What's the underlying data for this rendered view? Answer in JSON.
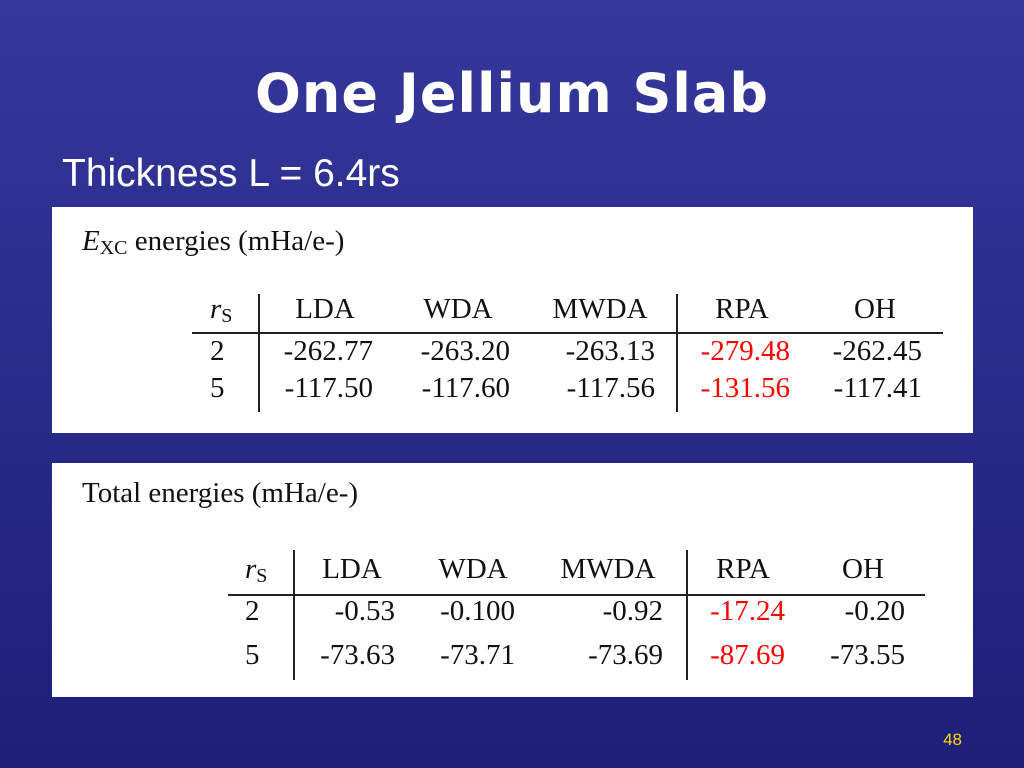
{
  "title": "One Jellium Slab",
  "subtitle": "Thickness L = 6.4rs",
  "tables": [
    {
      "caption_symbol": "E",
      "caption_subscript": "XC",
      "caption_text": "energies (mHa/e-)",
      "header_symbol": "r",
      "header_subscript": "S",
      "columns": [
        "LDA",
        "WDA",
        "MWDA",
        "RPA",
        "OH"
      ],
      "highlight": {
        "column": "RPA",
        "color": "#ff0000"
      },
      "rows": [
        {
          "rs": "2",
          "values": [
            "-262.77",
            "-263.20",
            "-263.13",
            "-279.48",
            "-262.45"
          ]
        },
        {
          "rs": "5",
          "values": [
            "-117.50",
            "-117.60",
            "-117.56",
            "-131.56",
            "-117.41"
          ]
        }
      ]
    },
    {
      "caption_text": "Total energies (mHa/e-)",
      "header_symbol": "r",
      "header_subscript": "S",
      "columns": [
        "LDA",
        "WDA",
        "MWDA",
        "RPA",
        "OH"
      ],
      "highlight": {
        "column": "RPA",
        "color": "#ff0000"
      },
      "rows": [
        {
          "rs": "2",
          "values": [
            "-0.53",
            "-0.100",
            "-0.92",
            "-17.24",
            "-0.20"
          ]
        },
        {
          "rs": "5",
          "values": [
            "-73.63",
            "-73.71",
            "-73.69",
            "-87.69",
            "-73.55"
          ]
        }
      ]
    }
  ],
  "page_number": "48"
}
